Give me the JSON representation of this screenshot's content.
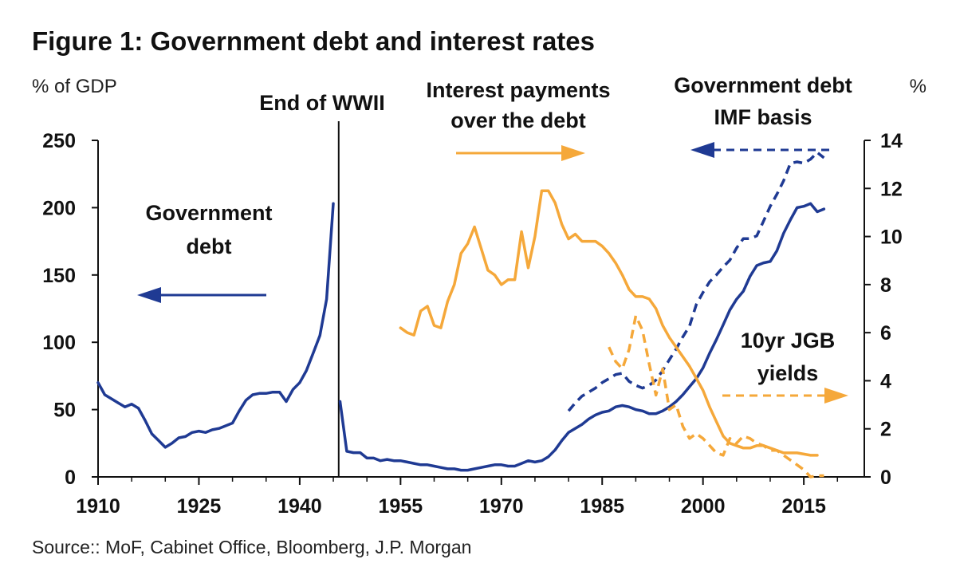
{
  "chart_data": {
    "type": "line",
    "title": "Figure 1: Government debt and interest rates",
    "left_axis_label": "% of GDP",
    "right_axis_label": "%",
    "x_ticks": [
      "1910",
      "1925",
      "1940",
      "1955",
      "1970",
      "1985",
      "2000",
      "2015"
    ],
    "y_left_ticks": [
      "250",
      "200",
      "150",
      "100",
      "50",
      "0"
    ],
    "y_right_ticks": [
      "14",
      "12",
      "10",
      "8",
      "6",
      "4",
      "2",
      "0"
    ],
    "xlim": [
      1910,
      2024
    ],
    "ylim_left": [
      0,
      250
    ],
    "ylim_right": [
      0,
      14
    ],
    "grid": false,
    "annotations": {
      "wwii": "End of WWII",
      "interest_line1": "Interest payments",
      "interest_line2": "over the debt",
      "gov_debt_line1": "Government",
      "gov_debt_line2": "debt",
      "imf_line1": "Government debt",
      "imf_line2": "IMF basis",
      "jgb_line1": "10yr JGB",
      "jgb_line2": "yields"
    },
    "source": "Source:: MoF, Cabinet Office, Bloomberg, J.P. Morgan",
    "colors": {
      "debt": "#1f3a93",
      "interest": "#f5a83a",
      "axis": "#111111"
    },
    "wwii_year": 1945.8,
    "series": [
      {
        "name": "Government debt",
        "axis": "left",
        "style": "solid",
        "color": "#1f3a93",
        "segments": [
          {
            "x": [
              1910,
              1911,
              1912,
              1913,
              1914,
              1915,
              1916,
              1917,
              1918,
              1919,
              1920,
              1921,
              1922,
              1923,
              1924,
              1925,
              1926,
              1927,
              1928,
              1929,
              1930,
              1931,
              1932,
              1933,
              1934,
              1935,
              1936,
              1937,
              1938,
              1939,
              1940,
              1941,
              1942,
              1943,
              1944,
              1945
            ],
            "y": [
              70,
              61,
              58,
              55,
              52,
              54,
              51,
              42,
              32,
              27,
              22,
              25,
              29,
              30,
              33,
              34,
              33,
              35,
              36,
              38,
              40,
              49,
              57,
              61,
              62,
              62,
              63,
              63,
              56,
              65,
              70,
              79,
              92,
              105,
              132,
              203
            ]
          },
          {
            "x": [
              1946,
              1947,
              1948,
              1949,
              1950,
              1951,
              1952,
              1953,
              1954,
              1955,
              1956,
              1957,
              1958,
              1959,
              1960,
              1961,
              1962,
              1963,
              1964,
              1965,
              1966,
              1967,
              1968,
              1969,
              1970,
              1971,
              1972,
              1973,
              1974,
              1975,
              1976,
              1977,
              1978,
              1979,
              1980,
              1981,
              1982,
              1983,
              1984,
              1985,
              1986,
              1987,
              1988,
              1989,
              1990,
              1991,
              1992,
              1993,
              1994,
              1995,
              1996,
              1997,
              1998,
              1999,
              2000,
              2001,
              2002,
              2003,
              2004,
              2005,
              2006,
              2007,
              2008,
              2009,
              2010,
              2011,
              2012,
              2013,
              2014,
              2015,
              2016,
              2017,
              2018
            ],
            "y": [
              56,
              19,
              18,
              18,
              14,
              14,
              12,
              13,
              12,
              12,
              11,
              10,
              9,
              9,
              8,
              7,
              6,
              6,
              5,
              5,
              6,
              7,
              8,
              9,
              9,
              8,
              8,
              10,
              12,
              11,
              12,
              15,
              20,
              27,
              33,
              36,
              39,
              43,
              46,
              48,
              49,
              52,
              53,
              52,
              50,
              49,
              47,
              47,
              49,
              52,
              56,
              61,
              67,
              73,
              81,
              92,
              102,
              113,
              124,
              132,
              138,
              149,
              157,
              159,
              160,
              168,
              181,
              191,
              200,
              201,
              203,
              197,
              199
            ]
          }
        ]
      },
      {
        "name": "Government debt IMF basis",
        "axis": "left",
        "style": "dashed",
        "color": "#1f3a93",
        "segments": [
          {
            "x": [
              1980,
              1981,
              1982,
              1983,
              1984,
              1985,
              1986,
              1987,
              1988,
              1989,
              1990,
              1991,
              1992,
              1993,
              1994,
              1995,
              1996,
              1997,
              1998,
              1999,
              2000,
              2001,
              2002,
              2003,
              2004,
              2005,
              2006,
              2007,
              2008,
              2009,
              2010,
              2011,
              2012,
              2013,
              2014,
              2015,
              2016,
              2017,
              2018
            ],
            "y": [
              49,
              55,
              60,
              63,
              66,
              70,
              73,
              76,
              77,
              71,
              68,
              66,
              68,
              72,
              79,
              87,
              95,
              104,
              112,
              128,
              137,
              145,
              150,
              156,
              161,
              170,
              177,
              177,
              179,
              190,
              201,
              210,
              220,
              233,
              234,
              233,
              236,
              241,
              237
            ]
          }
        ]
      },
      {
        "name": "Interest payments over the debt",
        "axis": "right",
        "style": "solid",
        "color": "#f5a83a",
        "segments": [
          {
            "x": [
              1955,
              1956,
              1957,
              1958,
              1959,
              1960,
              1961,
              1962,
              1963,
              1964,
              1965,
              1966,
              1967,
              1968,
              1969,
              1970,
              1971,
              1972,
              1973,
              1974,
              1975,
              1976,
              1977,
              1978,
              1979,
              1980,
              1981,
              1982,
              1983,
              1984,
              1985,
              1986,
              1987,
              1988,
              1989,
              1990,
              1991,
              1992,
              1993,
              1994,
              1995,
              1996,
              1997,
              1998,
              1999,
              2000,
              2001,
              2002,
              2003,
              2004,
              2005,
              2006,
              2007,
              2008,
              2009,
              2010,
              2011,
              2012,
              2013,
              2014,
              2015,
              2016,
              2017
            ],
            "y": [
              6.2,
              6.0,
              5.9,
              6.9,
              7.1,
              6.3,
              6.2,
              7.3,
              8.0,
              9.3,
              9.7,
              10.4,
              9.5,
              8.6,
              8.4,
              8.0,
              8.2,
              8.2,
              10.2,
              8.7,
              10.0,
              11.9,
              11.9,
              11.4,
              10.5,
              9.9,
              10.1,
              9.8,
              9.8,
              9.8,
              9.6,
              9.3,
              8.9,
              8.4,
              7.8,
              7.5,
              7.5,
              7.4,
              7.0,
              6.3,
              5.8,
              5.4,
              5.0,
              4.6,
              4.1,
              3.6,
              2.9,
              2.3,
              1.7,
              1.4,
              1.3,
              1.2,
              1.2,
              1.3,
              1.3,
              1.2,
              1.1,
              1.0,
              1.0,
              1.0,
              0.95,
              0.9,
              0.9
            ]
          }
        ]
      },
      {
        "name": "10yr JGB yields",
        "axis": "right",
        "style": "dashed",
        "color": "#f5a83a",
        "segments": [
          {
            "x": [
              1986,
              1987,
              1988,
              1989,
              1990,
              1991,
              1992,
              1993,
              1994,
              1995,
              1996,
              1997,
              1998,
              1999,
              2000,
              2001,
              2002,
              2003,
              2004,
              2005,
              2006,
              2007,
              2008,
              2009,
              2010,
              2011,
              2012,
              2013,
              2014,
              2015,
              2016,
              2017,
              2018
            ],
            "y": [
              5.4,
              4.8,
              4.5,
              5.3,
              6.7,
              6.1,
              4.7,
              3.4,
              4.5,
              2.8,
              3.0,
              2.1,
              1.6,
              1.8,
              1.6,
              1.3,
              1.0,
              0.9,
              1.6,
              1.4,
              1.7,
              1.6,
              1.4,
              1.3,
              1.1,
              1.1,
              0.9,
              0.7,
              0.5,
              0.3,
              0.0,
              0.05,
              0.05
            ]
          }
        ]
      }
    ]
  }
}
